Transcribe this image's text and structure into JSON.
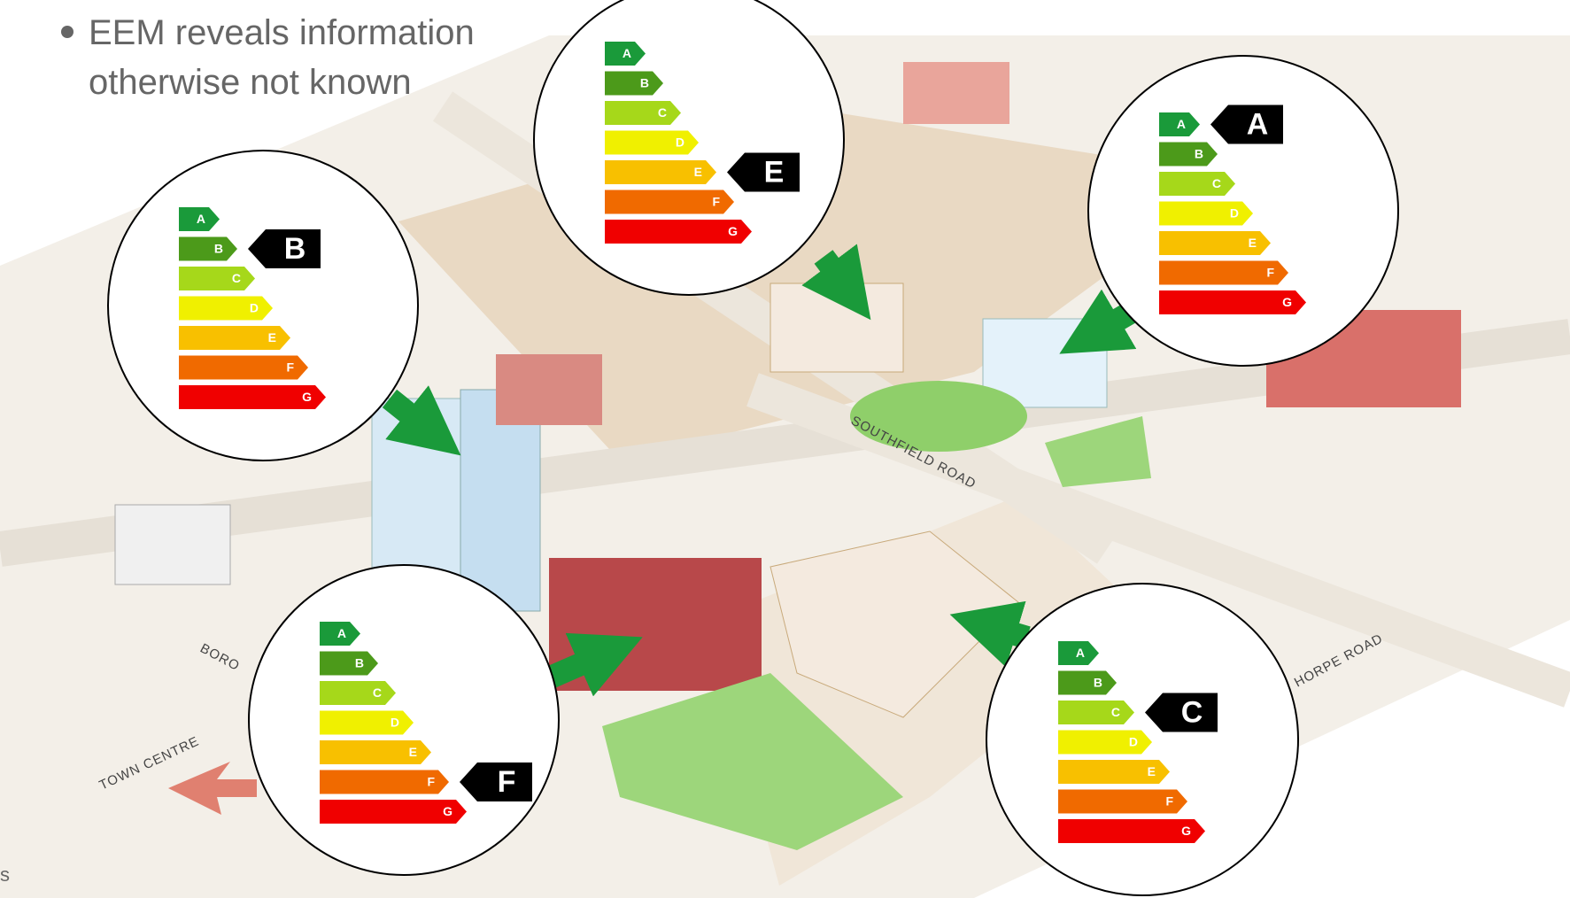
{
  "bullet": {
    "line1": "EEM reveals information",
    "line2": "otherwise not known"
  },
  "bands": [
    "A",
    "B",
    "C",
    "D",
    "E",
    "F",
    "G"
  ],
  "labels": [
    {
      "rating": "B"
    },
    {
      "rating": "E"
    },
    {
      "rating": "A"
    },
    {
      "rating": "F"
    },
    {
      "rating": "C"
    }
  ],
  "roads": {
    "southfield": "SOUTHFIELD ROAD",
    "borough": "BORO",
    "town_centre": "TOWN CENTRE",
    "thorpe": "HORPE ROAD"
  },
  "footer": "s"
}
